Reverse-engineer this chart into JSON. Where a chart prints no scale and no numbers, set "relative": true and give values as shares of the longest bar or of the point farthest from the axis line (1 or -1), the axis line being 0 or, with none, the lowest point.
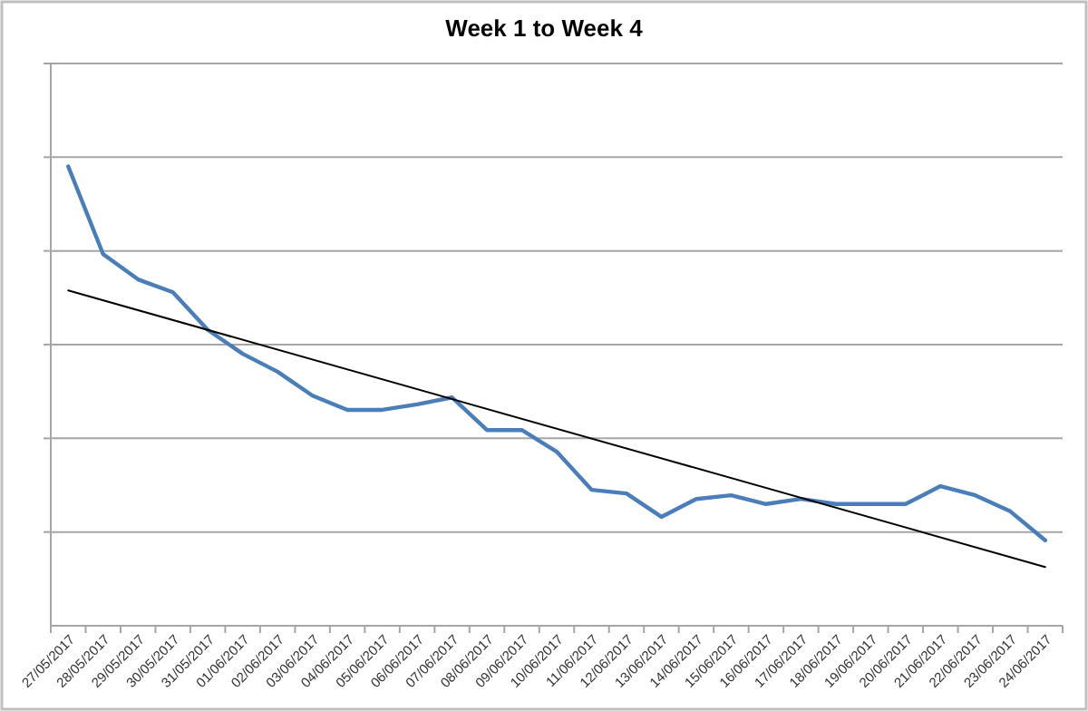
{
  "chart_data": {
    "type": "line",
    "title": "Week 1 to Week 4",
    "relative": true,
    "grid": "y",
    "marker": "none",
    "line_style": "solid",
    "categories": [
      "27/05/2017",
      "28/05/2017",
      "29/05/2017",
      "30/05/2017",
      "31/05/2017",
      "01/06/2017",
      "02/06/2017",
      "03/06/2017",
      "04/06/2017",
      "05/06/2017",
      "06/06/2017",
      "07/06/2017",
      "08/06/2017",
      "09/06/2017",
      "10/06/2017",
      "11/06/2017",
      "12/06/2017",
      "13/06/2017",
      "14/06/2017",
      "15/06/2017",
      "16/06/2017",
      "17/06/2017",
      "18/06/2017",
      "19/06/2017",
      "20/06/2017",
      "21/06/2017",
      "22/06/2017",
      "23/06/2017",
      "24/06/2017"
    ],
    "series": [
      {
        "color": "#4a7ebb",
        "values": [
          1,
          0.809,
          0.754,
          0.726,
          0.644,
          0.592,
          0.553,
          0.501,
          0.47,
          0.47,
          0.482,
          0.497,
          0.426,
          0.426,
          0.379,
          0.296,
          0.288,
          0.237,
          0.276,
          0.284,
          0.265,
          0.276,
          0.265,
          0.265,
          0.265,
          0.304,
          0.284,
          0.249,
          0.186
        ]
      },
      {
        "type": "line",
        "color": "#000000",
        "x": [
          "27/05/2017",
          "24/06/2017"
        ],
        "values": [
          0.73,
          0.128
        ]
      }
    ]
  }
}
